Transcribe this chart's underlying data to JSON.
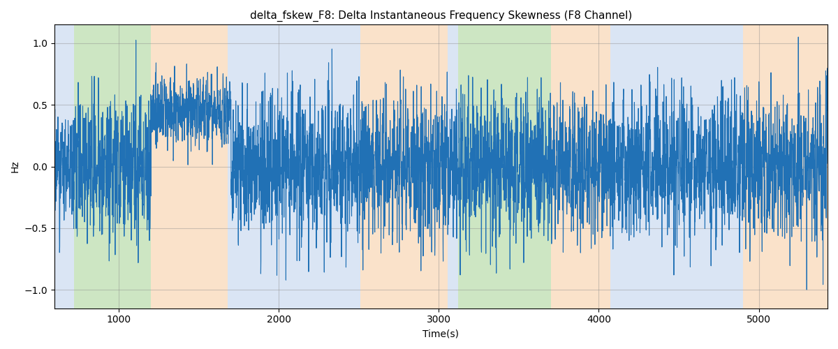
{
  "title": "delta_fskew_F8: Delta Instantaneous Frequency Skewness (F8 Channel)",
  "xlabel": "Time(s)",
  "ylabel": "Hz",
  "xlim": [
    596,
    5430
  ],
  "ylim": [
    -1.15,
    1.15
  ],
  "yticks": [
    -1.0,
    -0.5,
    0.0,
    0.5,
    1.0
  ],
  "xticks": [
    1000,
    2000,
    3000,
    4000,
    5000
  ],
  "figsize": [
    12.0,
    5.0
  ],
  "dpi": 100,
  "line_color": "#2171b5",
  "line_width": 0.8,
  "bg_regions": [
    {
      "xmin": 596,
      "xmax": 720,
      "color": "#aec6e8",
      "alpha": 0.45
    },
    {
      "xmin": 720,
      "xmax": 1200,
      "color": "#90c97a",
      "alpha": 0.45
    },
    {
      "xmin": 1200,
      "xmax": 1680,
      "color": "#f5c08a",
      "alpha": 0.45
    },
    {
      "xmin": 1680,
      "xmax": 1850,
      "color": "#aec6e8",
      "alpha": 0.45
    },
    {
      "xmin": 1850,
      "xmax": 2480,
      "color": "#aec6e8",
      "alpha": 0.45
    },
    {
      "xmin": 2480,
      "xmax": 2560,
      "color": "#f5c08a",
      "alpha": 0.45
    },
    {
      "xmin": 2560,
      "xmax": 3060,
      "color": "#aec6e8",
      "alpha": 0.45
    },
    {
      "xmin": 3060,
      "xmax": 3100,
      "color": "#aec6e8",
      "alpha": 0.45
    },
    {
      "xmin": 3100,
      "xmax": 3680,
      "color": "#90c97a",
      "alpha": 0.45
    },
    {
      "xmin": 3680,
      "xmax": 4050,
      "color": "#f5c08a",
      "alpha": 0.45
    },
    {
      "xmin": 4050,
      "xmax": 4870,
      "color": "#aec6e8",
      "alpha": 0.45
    },
    {
      "xmin": 4870,
      "xmax": 5430,
      "color": "#f5c08a",
      "alpha": 0.45
    }
  ],
  "grid_color": "#888888",
  "grid_alpha": 0.4,
  "grid_linewidth": 0.8,
  "n_points": 4800
}
